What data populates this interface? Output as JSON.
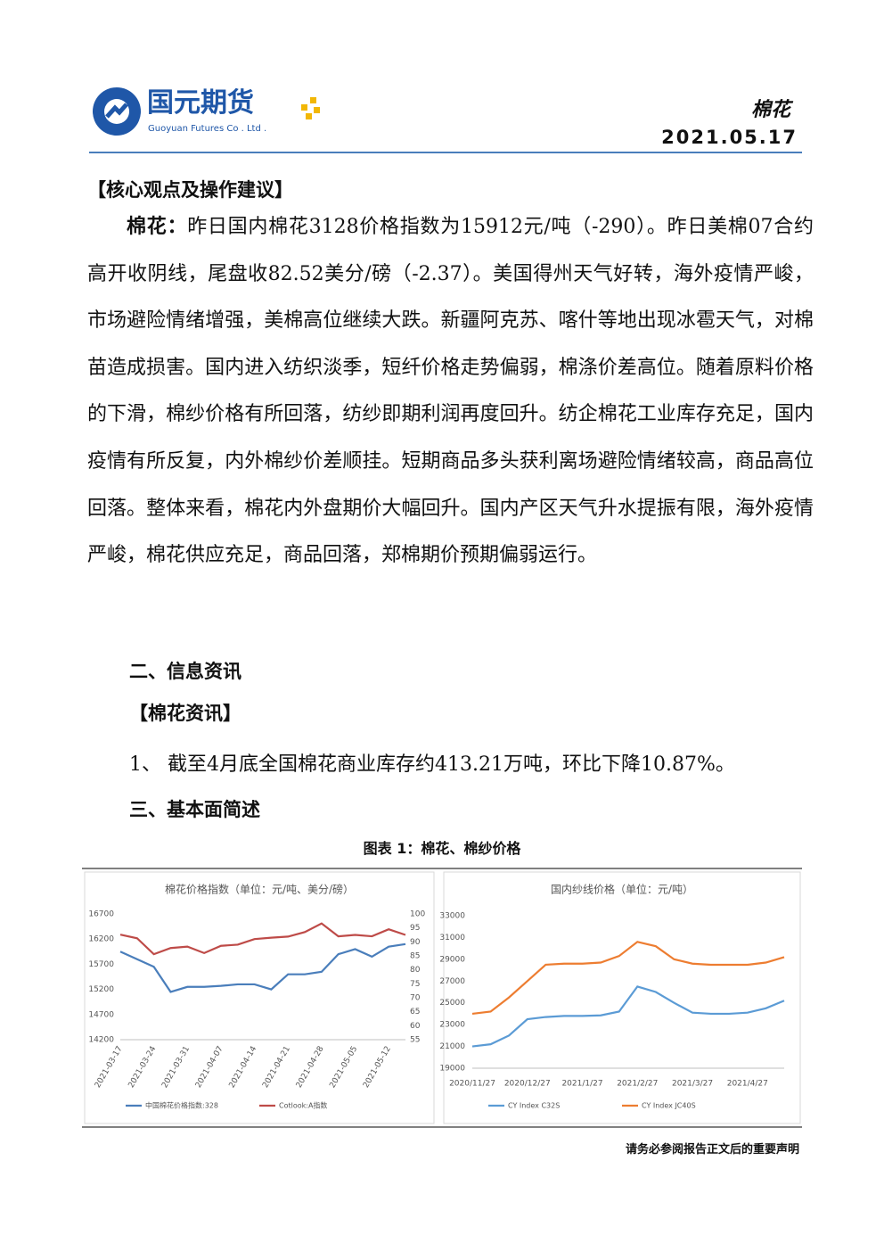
{
  "header": {
    "logo_cn": "国元期货",
    "logo_en": "Guoyuan Futures Co . Ltd .",
    "category": "棉花",
    "date": "2021.05.17"
  },
  "section1": {
    "heading": "【核心观点及操作建议】",
    "lead": "棉花：",
    "body": "昨日国内棉花3128价格指数为15912元/吨（-290）。昨日美棉07合约高开收阴线，尾盘收82.52美分/磅（-2.37）。美国得州天气好转，海外疫情严峻，市场避险情绪增强，美棉高位继续大跌。新疆阿克苏、喀什等地出现冰雹天气，对棉苗造成损害。国内进入纺织淡季，短纤价格走势偏弱，棉涤价差高位。随着原料价格的下滑，棉纱价格有所回落，纺纱即期利润再度回升。纺企棉花工业库存充足，国内疫情有所反复，内外棉纱价差顺挂。短期商品多头获利离场避险情绪较高，商品高位回落。整体来看，棉花内外盘期价大幅回升。国内产区天气升水提振有限，海外疫情严峻，棉花供应充足，商品回落，郑棉期价预期偏弱运行。"
  },
  "section2": {
    "heading": "二、信息资讯",
    "subheading": "【棉花资讯】",
    "item": "1、 截至4月底全国棉花商业库存约413.21万吨，环比下降10.87%。"
  },
  "section3": {
    "heading": "三、基本面简述"
  },
  "figure_caption": "图表 1：棉花、棉纱价格",
  "footer": "请务必参阅报告正文后的重要声明",
  "chart_data": [
    {
      "type": "line",
      "title": "棉花价格指数（单位：元/吨、美分/磅）",
      "categories": [
        "2021-03-17",
        null,
        "2021-03-24",
        null,
        "2021-03-31",
        null,
        "2021-04-07",
        null,
        "2021-04-14",
        null,
        "2021-04-21",
        null,
        "2021-04-28",
        null,
        "2021-05-05",
        null,
        "2021-05-12",
        null
      ],
      "series": [
        {
          "name": "中国棉花价格指数:328",
          "color": "#4a7ebb",
          "values": [
            15950,
            15800,
            15650,
            15150,
            15250,
            15250,
            15270,
            15300,
            15300,
            15200,
            15500,
            15500,
            15550,
            15900,
            16000,
            15850,
            16050,
            16100
          ]
        },
        {
          "name": "Cotlook:A指数",
          "color": "#be4b48",
          "axis": "y2",
          "values": [
            92.6,
            91.3,
            85.6,
            87.8,
            88.3,
            86,
            88.6,
            89,
            91,
            91.5,
            91.9,
            93.5,
            96.6,
            92,
            92.5,
            92,
            94.5,
            92.5
          ]
        }
      ],
      "ylim": [
        14200,
        16700
      ],
      "yticks": [
        14200,
        14700,
        15200,
        15700,
        16200,
        16700
      ],
      "y2lim": [
        55,
        100
      ],
      "y2ticks": [
        55,
        60,
        65,
        70,
        75,
        80,
        85,
        90,
        95,
        100
      ],
      "legend": "bottom"
    },
    {
      "type": "line",
      "title": "国内纱线价格（单位：元/吨）",
      "categories": [
        "2020/11/27",
        null,
        null,
        "2020/12/27",
        null,
        null,
        "2021/1/27",
        null,
        null,
        "2021/2/27",
        null,
        null,
        "2021/3/27",
        null,
        null,
        "2021/4/27",
        null,
        null
      ],
      "series": [
        {
          "name": "CY Index C32S",
          "color": "#5b9bd5",
          "values": [
            21000,
            21200,
            22000,
            23500,
            23700,
            23800,
            23800,
            23850,
            24200,
            26500,
            26000,
            25000,
            24100,
            24000,
            24000,
            24100,
            24500,
            25200
          ]
        },
        {
          "name": "CY Index JC40S",
          "color": "#ed7d31",
          "values": [
            24000,
            24200,
            25500,
            27000,
            28500,
            28600,
            28600,
            28700,
            29300,
            30600,
            30200,
            29000,
            28600,
            28500,
            28500,
            28500,
            28700,
            29200
          ]
        }
      ],
      "ylim": [
        19000,
        33000
      ],
      "yticks": [
        19000,
        21000,
        23000,
        25000,
        27000,
        29000,
        31000,
        33000
      ],
      "legend": "bottom"
    }
  ]
}
